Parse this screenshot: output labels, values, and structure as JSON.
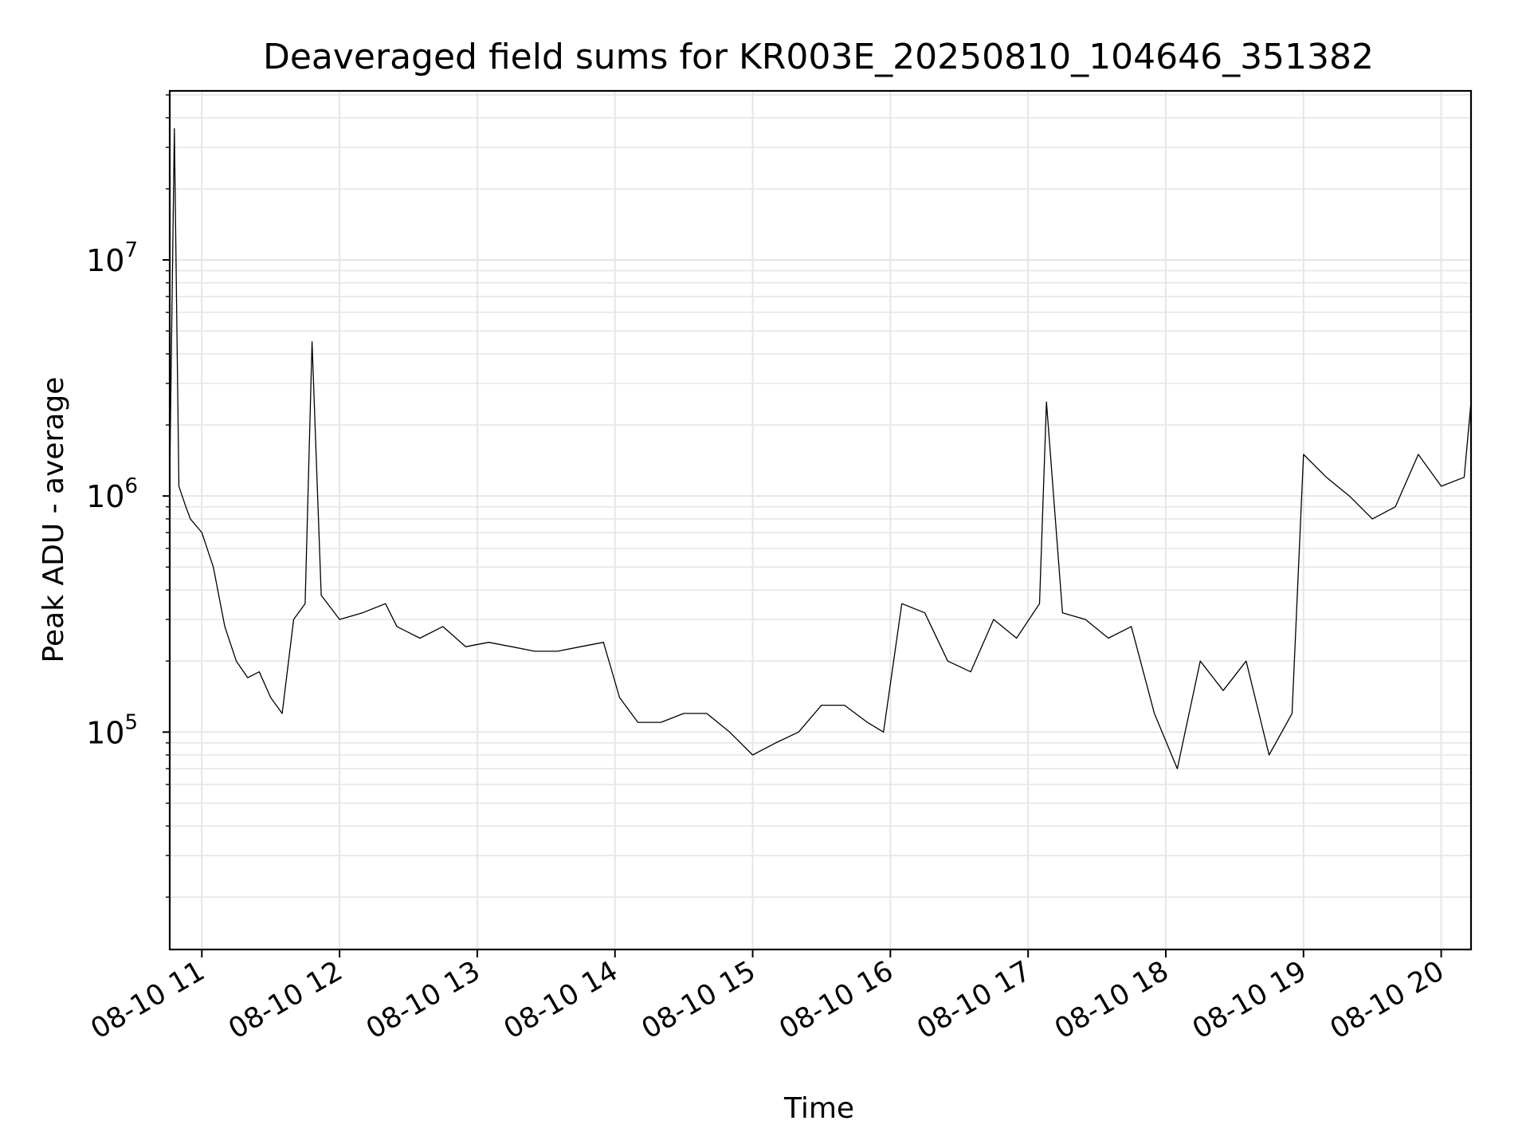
{
  "chart_data": {
    "type": "line",
    "title": "Deaveraged field sums for KR003E_20250810_104646_351382",
    "xlabel": "Time",
    "ylabel": "Peak ADU - average",
    "y_scale": "log",
    "ylim": [
      12000,
      52000000
    ],
    "xlim": [
      "2025-08-10 10:46",
      "2025-08-10 20:13"
    ],
    "grid": true,
    "grid_color": "#e6e6e6",
    "line_color": "#000000",
    "x_ticks": [
      "08-10 11",
      "08-10 12",
      "08-10 13",
      "08-10 14",
      "08-10 15",
      "08-10 16",
      "08-10 17",
      "08-10 18",
      "08-10 19",
      "08-10 20"
    ],
    "y_ticks": [
      {
        "value": 100000,
        "base": "10",
        "exp": "5"
      },
      {
        "value": 1000000,
        "base": "10",
        "exp": "6"
      },
      {
        "value": 10000000,
        "base": "10",
        "exp": "7"
      }
    ],
    "series": [
      {
        "x": [
          "2025-08-10 10:46",
          "2025-08-10 10:48",
          "2025-08-10 10:50",
          "2025-08-10 10:53",
          "2025-08-10 10:55",
          "2025-08-10 11:00",
          "2025-08-10 11:05",
          "2025-08-10 11:10",
          "2025-08-10 11:15",
          "2025-08-10 11:20",
          "2025-08-10 11:25",
          "2025-08-10 11:30",
          "2025-08-10 11:35",
          "2025-08-10 11:40",
          "2025-08-10 11:45",
          "2025-08-10 11:48",
          "2025-08-10 11:52",
          "2025-08-10 12:00",
          "2025-08-10 12:10",
          "2025-08-10 12:20",
          "2025-08-10 12:25",
          "2025-08-10 12:35",
          "2025-08-10 12:45",
          "2025-08-10 12:55",
          "2025-08-10 13:05",
          "2025-08-10 13:15",
          "2025-08-10 13:25",
          "2025-08-10 13:35",
          "2025-08-10 13:45",
          "2025-08-10 13:55",
          "2025-08-10 14:02",
          "2025-08-10 14:10",
          "2025-08-10 14:20",
          "2025-08-10 14:30",
          "2025-08-10 14:40",
          "2025-08-10 14:50",
          "2025-08-10 15:00",
          "2025-08-10 15:10",
          "2025-08-10 15:20",
          "2025-08-10 15:30",
          "2025-08-10 15:40",
          "2025-08-10 15:50",
          "2025-08-10 15:57",
          "2025-08-10 16:05",
          "2025-08-10 16:15",
          "2025-08-10 16:25",
          "2025-08-10 16:35",
          "2025-08-10 16:45",
          "2025-08-10 16:55",
          "2025-08-10 17:05",
          "2025-08-10 17:08",
          "2025-08-10 17:15",
          "2025-08-10 17:25",
          "2025-08-10 17:35",
          "2025-08-10 17:45",
          "2025-08-10 17:55",
          "2025-08-10 18:05",
          "2025-08-10 18:15",
          "2025-08-10 18:25",
          "2025-08-10 18:35",
          "2025-08-10 18:45",
          "2025-08-10 18:55",
          "2025-08-10 19:00",
          "2025-08-10 19:10",
          "2025-08-10 19:20",
          "2025-08-10 19:30",
          "2025-08-10 19:40",
          "2025-08-10 19:50",
          "2025-08-10 20:00",
          "2025-08-10 20:10",
          "2025-08-10 20:13"
        ],
        "values": [
          1200000,
          36000000,
          1100000,
          900000,
          800000,
          700000,
          500000,
          280000,
          200000,
          170000,
          180000,
          140000,
          120000,
          300000,
          350000,
          4500000,
          380000,
          300000,
          320000,
          350000,
          280000,
          250000,
          280000,
          230000,
          240000,
          230000,
          220000,
          220000,
          230000,
          240000,
          140000,
          110000,
          110000,
          120000,
          120000,
          100000,
          80000,
          90000,
          100000,
          130000,
          130000,
          110000,
          100000,
          350000,
          320000,
          200000,
          180000,
          300000,
          250000,
          350000,
          2500000,
          320000,
          300000,
          250000,
          280000,
          120000,
          70000,
          200000,
          150000,
          200000,
          80000,
          120000,
          1500000,
          1200000,
          1000000,
          800000,
          900000,
          1500000,
          1100000,
          1200000,
          2500000
        ]
      }
    ]
  }
}
